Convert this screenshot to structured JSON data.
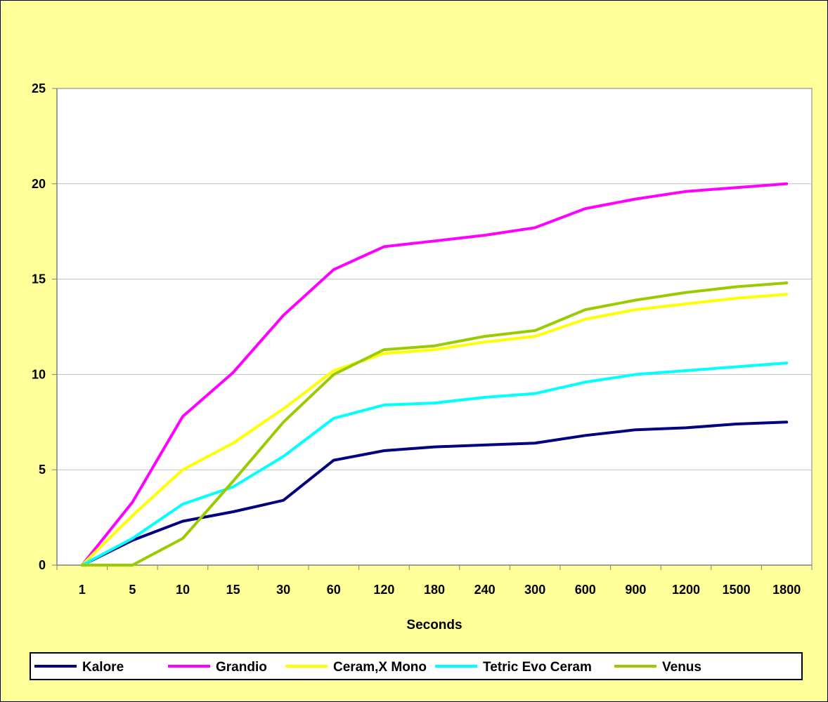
{
  "chart_data": {
    "type": "line",
    "title": "",
    "xlabel": "Seconds",
    "ylabel": "",
    "categories": [
      "1",
      "5",
      "10",
      "15",
      "30",
      "60",
      "120",
      "180",
      "240",
      "300",
      "600",
      "900",
      "1200",
      "1500",
      "1800"
    ],
    "yticks": [
      "0",
      "5",
      "10",
      "15",
      "20",
      "25"
    ],
    "ylim": [
      0,
      25
    ],
    "grid": true,
    "legend_position": "bottom",
    "series": [
      {
        "name": "Kalore",
        "color": "#000080",
        "values": [
          0,
          1.3,
          2.3,
          2.8,
          3.4,
          5.5,
          6.0,
          6.2,
          6.3,
          6.4,
          6.8,
          7.1,
          7.2,
          7.4,
          7.5
        ]
      },
      {
        "name": "Grandio",
        "color": "#ff00ff",
        "values": [
          0,
          3.3,
          7.8,
          10.1,
          13.1,
          15.5,
          16.7,
          17.0,
          17.3,
          17.7,
          18.7,
          19.2,
          19.6,
          19.8,
          20.0
        ]
      },
      {
        "name": "Ceram,X Mono",
        "color": "#ffff00",
        "values": [
          0,
          2.6,
          5.0,
          6.4,
          8.2,
          10.2,
          11.1,
          11.3,
          11.7,
          12.0,
          12.9,
          13.4,
          13.7,
          14.0,
          14.2
        ]
      },
      {
        "name": "Tetric Evo Ceram",
        "color": "#00ffff",
        "values": [
          0,
          1.4,
          3.2,
          4.1,
          5.7,
          7.7,
          8.4,
          8.5,
          8.8,
          9.0,
          9.6,
          10.0,
          10.2,
          10.4,
          10.6
        ]
      },
      {
        "name": "Venus",
        "color": "#99cc00",
        "values": [
          0,
          0,
          1.4,
          4.4,
          7.5,
          10.0,
          11.3,
          11.5,
          12.0,
          12.3,
          13.4,
          13.9,
          14.3,
          14.6,
          14.8
        ]
      }
    ]
  }
}
